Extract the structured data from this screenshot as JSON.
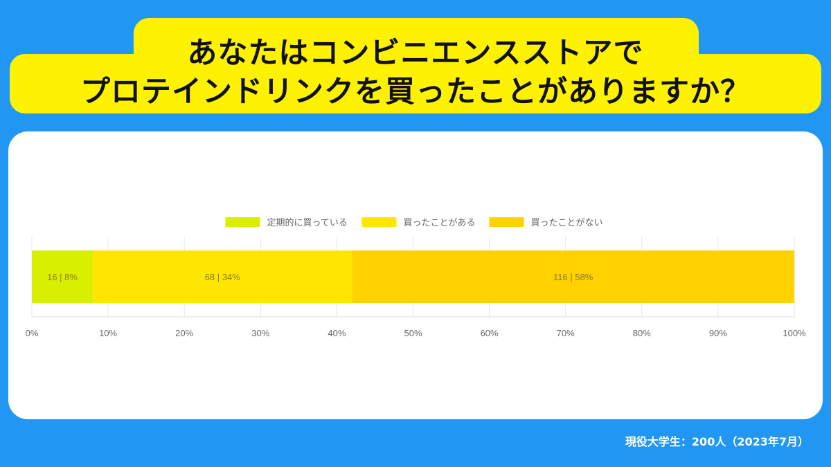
{
  "title": {
    "line1": "あなたはコンビニエンスストアで",
    "line2": "プロテインドリンクを買ったことがありますか？"
  },
  "footnote": "現役大学生：200人（2023年7月）",
  "chart_data": {
    "type": "bar",
    "orientation": "horizontal",
    "stacked": true,
    "percent_scale": true,
    "legend_position": "top",
    "grid": true,
    "xlim": [
      0,
      100
    ],
    "x_ticks": [
      "0%",
      "10%",
      "20%",
      "30%",
      "40%",
      "50%",
      "60%",
      "70%",
      "80%",
      "90%",
      "100%"
    ],
    "series": [
      {
        "name": "定期的に買っている",
        "count": 16,
        "percent": 8,
        "label": "16 | 8%",
        "color": "#d9ef00"
      },
      {
        "name": "買ったことがある",
        "count": 68,
        "percent": 34,
        "label": "68 | 34%",
        "color": "#ffe600"
      },
      {
        "name": "買ったことがない",
        "count": 116,
        "percent": 58,
        "label": "116 | 58%",
        "color": "#ffd200"
      }
    ]
  }
}
